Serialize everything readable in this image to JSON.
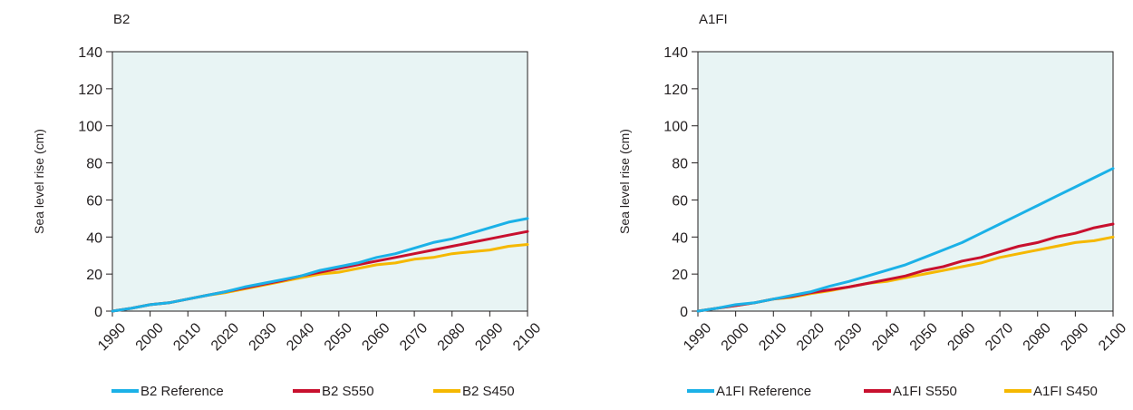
{
  "chart_data": [
    {
      "type": "line",
      "title": "B2",
      "xlabel": "",
      "ylabel": "Sea level rise (cm)",
      "xlim": [
        1990,
        2100
      ],
      "ylim": [
        0,
        140
      ],
      "yticks": [
        0,
        20,
        40,
        60,
        80,
        100,
        120,
        140
      ],
      "xticks": [
        1990,
        2000,
        2010,
        2020,
        2030,
        2040,
        2050,
        2060,
        2070,
        2080,
        2090,
        2100
      ],
      "grid": false,
      "legend_position": "bottom",
      "background_color": "#e8f4f4",
      "x": [
        1990,
        1995,
        2000,
        2005,
        2010,
        2015,
        2020,
        2025,
        2030,
        2035,
        2040,
        2045,
        2050,
        2055,
        2060,
        2065,
        2070,
        2075,
        2080,
        2085,
        2090,
        2095,
        2100
      ],
      "series": [
        {
          "name": "B2 Reference",
          "color": "#1bb1e7",
          "values": [
            0,
            1.5,
            3.5,
            4.5,
            6.5,
            8.5,
            10.5,
            13,
            15,
            17,
            19,
            22,
            24,
            26,
            29,
            31,
            34,
            37,
            39,
            42,
            45,
            48,
            50
          ]
        },
        {
          "name": "B2 S550",
          "color": "#c8102e",
          "values": [
            0,
            1.5,
            3.5,
            4.5,
            6.5,
            8.5,
            10.5,
            12.5,
            14.5,
            16.5,
            19,
            21,
            23,
            25,
            27,
            29,
            31,
            33,
            35,
            37,
            39,
            41,
            43
          ]
        },
        {
          "name": "B2 S450",
          "color": "#f5b800",
          "values": [
            0,
            1.5,
            3.5,
            4.5,
            6.5,
            8.5,
            10,
            12,
            14,
            16,
            18,
            20,
            21,
            23,
            25,
            26,
            28,
            29,
            31,
            32,
            33,
            35,
            36
          ]
        }
      ]
    },
    {
      "type": "line",
      "title": "A1FI",
      "xlabel": "",
      "ylabel": "Sea level rise (cm)",
      "xlim": [
        1990,
        2100
      ],
      "ylim": [
        0,
        140
      ],
      "yticks": [
        0,
        20,
        40,
        60,
        80,
        100,
        120,
        140
      ],
      "xticks": [
        1990,
        2000,
        2010,
        2020,
        2030,
        2040,
        2050,
        2060,
        2070,
        2080,
        2090,
        2100
      ],
      "grid": false,
      "legend_position": "bottom",
      "background_color": "#e8f4f4",
      "x": [
        1990,
        1995,
        2000,
        2005,
        2010,
        2015,
        2020,
        2025,
        2030,
        2035,
        2040,
        2045,
        2050,
        2055,
        2060,
        2065,
        2070,
        2075,
        2080,
        2085,
        2090,
        2095,
        2100
      ],
      "series": [
        {
          "name": "A1FI Reference",
          "color": "#1bb1e7",
          "values": [
            0,
            1.5,
            3.5,
            4.5,
            6.5,
            8.5,
            10.5,
            13.5,
            16,
            19,
            22,
            25,
            29,
            33,
            37,
            42,
            47,
            52,
            57,
            62,
            67,
            72,
            77
          ]
        },
        {
          "name": "A1FI S550",
          "color": "#c8102e",
          "values": [
            0,
            1.5,
            3,
            4.5,
            6.5,
            8,
            10,
            11.5,
            13,
            15,
            17,
            19,
            22,
            24,
            27,
            29,
            32,
            35,
            37,
            40,
            42,
            45,
            47
          ]
        },
        {
          "name": "A1FI S450",
          "color": "#f5b800",
          "values": [
            0,
            1.5,
            3,
            4.5,
            6.5,
            7.5,
            9.5,
            11,
            13,
            15,
            16,
            18,
            20,
            22,
            24,
            26,
            29,
            31,
            33,
            35,
            37,
            38,
            40
          ]
        }
      ]
    }
  ]
}
